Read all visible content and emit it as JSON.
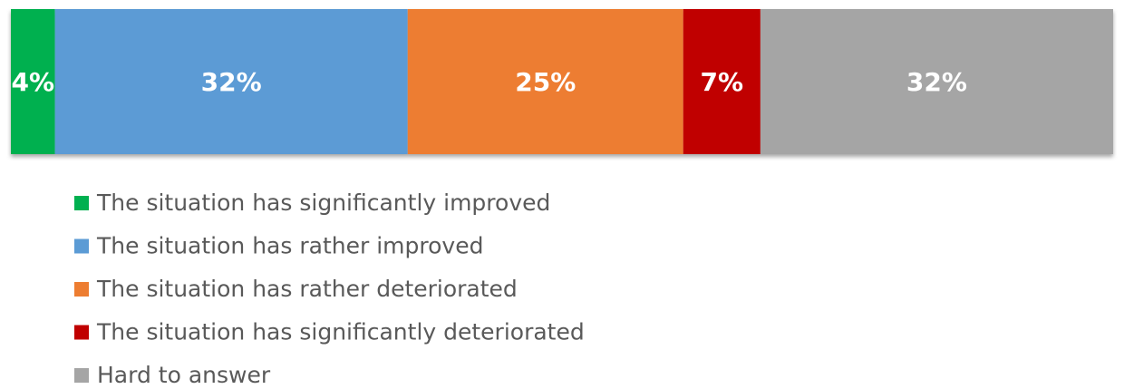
{
  "chart_data": {
    "type": "bar",
    "orientation": "horizontal",
    "stacked": true,
    "categories": [
      null
    ],
    "xlim": [
      0,
      100
    ],
    "legend": "bottom",
    "series": [
      {
        "name": "The situation has significantly improved",
        "color": "#00b050",
        "values": [
          4
        ],
        "value_labels": [
          "4%"
        ]
      },
      {
        "name": "The situation has rather improved",
        "color": "#5b9bd5",
        "values": [
          32
        ],
        "value_labels": [
          "32%"
        ]
      },
      {
        "name": "The situation has rather deteriorated",
        "color": "#ed7d31",
        "values": [
          25
        ],
        "value_labels": [
          "25%"
        ]
      },
      {
        "name": "The situation has significantly deteriorated",
        "color": "#c00000",
        "values": [
          7
        ],
        "value_labels": [
          "7%"
        ]
      },
      {
        "name": "Hard to answer",
        "color": "#a5a5a5",
        "values": [
          32
        ],
        "value_labels": [
          "32%"
        ]
      }
    ]
  }
}
